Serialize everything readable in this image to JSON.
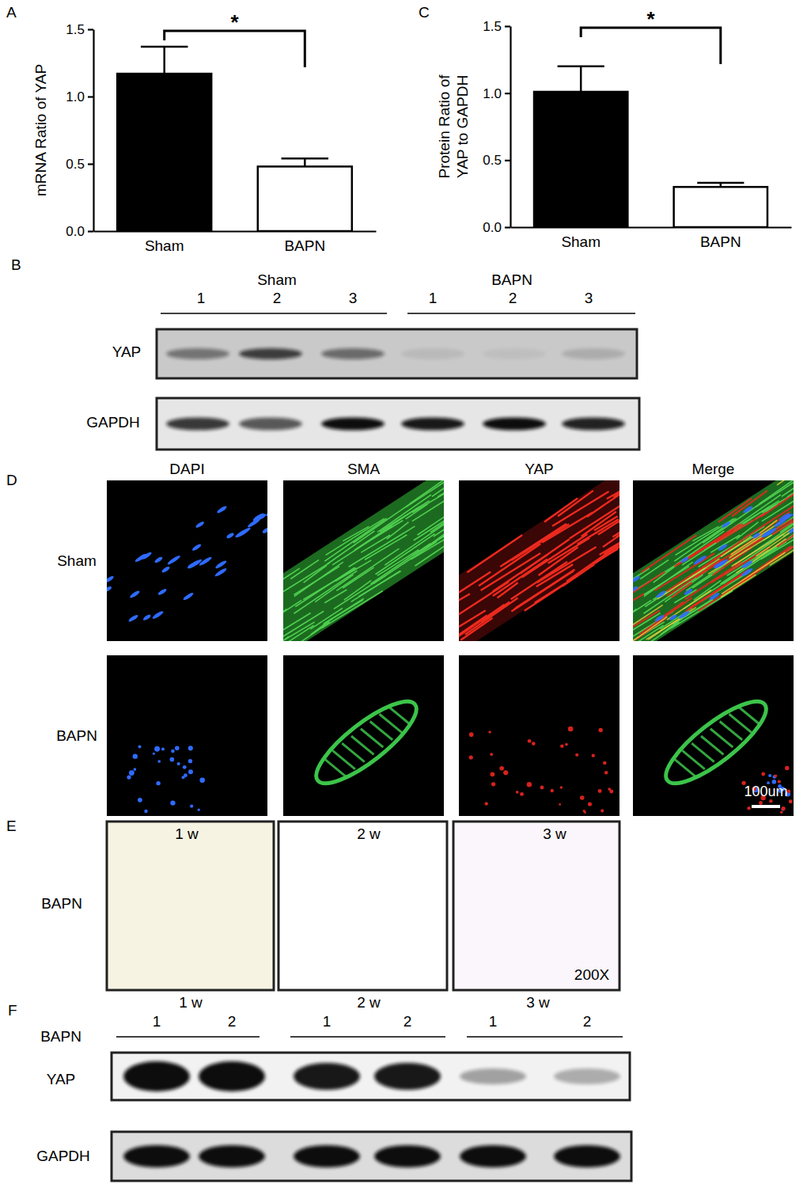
{
  "chart_data": [
    {
      "type": "bar",
      "panel_label": "A",
      "y_label": "mRNA Ratio of YAP",
      "categories": [
        "Sham",
        "BAPN"
      ],
      "values": [
        1.17,
        0.48
      ],
      "errors": [
        0.2,
        0.06
      ],
      "colors": [
        "#000000",
        "#ffffff"
      ],
      "ylim": [
        0,
        1.5
      ],
      "yticks": [
        {
          "value": 0,
          "label": "0.0"
        },
        0.5,
        {
          "value": 1,
          "label": "1.0"
        },
        1.5
      ],
      "annotation": "*"
    },
    {
      "type": "bar",
      "panel_label": "C",
      "y_label": [
        "Protein Ratio of",
        "YAP to GAPDH"
      ],
      "categories": [
        "Sham",
        "BAPN"
      ],
      "values": [
        1.01,
        0.3
      ],
      "errors": [
        0.19,
        0.03
      ],
      "colors": [
        "#000000",
        "#ffffff"
      ],
      "ylim": [
        0,
        1.5
      ],
      "yticks": [
        {
          "value": 0,
          "label": "0.0"
        },
        0.5,
        {
          "value": 1,
          "label": "1.0"
        },
        1.5
      ],
      "annotation": "*"
    }
  ],
  "panel_b": {
    "panel_label": "B",
    "groups": [
      {
        "label": "Sham",
        "lanes": [
          "1",
          "2",
          "3"
        ]
      },
      {
        "label": "BAPN",
        "lanes": [
          "1",
          "2",
          "3"
        ]
      }
    ],
    "rows": [
      "YAP",
      "GAPDH"
    ]
  },
  "panel_d": {
    "panel_label": "D",
    "columns": [
      "DAPI",
      "SMA",
      "YAP",
      "Merge"
    ],
    "rows": [
      "Sham",
      "BAPN"
    ],
    "scale_bar": "100um"
  },
  "panel_e": {
    "panel_label": "E",
    "row_label": "BAPN",
    "timepoints": [
      "1 w",
      "2 w",
      "3 w"
    ],
    "magnification": "200X"
  },
  "panel_f": {
    "panel_label": "F",
    "row_label": "BAPN",
    "groups": [
      {
        "label": "1 w",
        "lanes": [
          "1",
          "2"
        ]
      },
      {
        "label": "2 w",
        "lanes": [
          "1",
          "2"
        ]
      },
      {
        "label": "3 w",
        "lanes": [
          "1",
          "2"
        ]
      }
    ],
    "rows": [
      "YAP",
      "GAPDH"
    ]
  }
}
